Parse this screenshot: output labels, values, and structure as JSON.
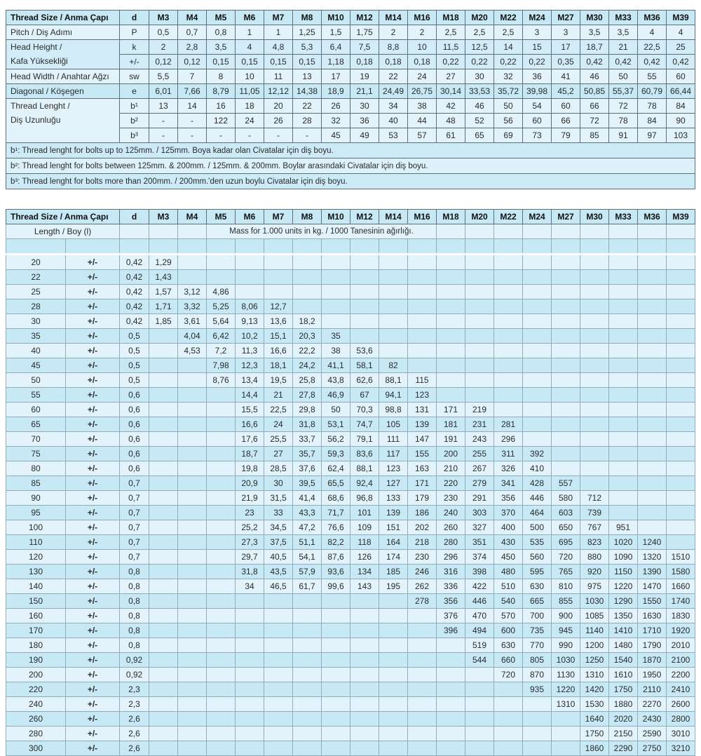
{
  "table1": {
    "corner_label": "Thread Size / Anma Çapı",
    "d_label": "d",
    "columns": [
      "M3",
      "M4",
      "M5",
      "M6",
      "M7",
      "M8",
      "M10",
      "M12",
      "M14",
      "M16",
      "M18",
      "M20",
      "M22",
      "M24",
      "M27",
      "M30",
      "M33",
      "M36",
      "M39"
    ],
    "rows": [
      {
        "label_lines": [
          "Pitch / Diş Adımı"
        ],
        "shade": "light",
        "subrows": [
          {
            "sym": "P",
            "values": [
              "0,5",
              "0,7",
              "0,8",
              "1",
              "1",
              "1,25",
              "1,5",
              "1,75",
              "2",
              "2",
              "2,5",
              "2,5",
              "2,5",
              "3",
              "3",
              "3,5",
              "3,5",
              "4",
              "4"
            ]
          }
        ]
      },
      {
        "label_lines": [
          "Head Height /",
          "Kafa Yüksekliği"
        ],
        "shade": "mid",
        "subrows": [
          {
            "sym": "k",
            "values": [
              "2",
              "2,8",
              "3,5",
              "4",
              "4,8",
              "5,3",
              "6,4",
              "7,5",
              "8,8",
              "10",
              "11,5",
              "12,5",
              "14",
              "15",
              "17",
              "18,7",
              "21",
              "22,5",
              "25"
            ]
          },
          {
            "sym": "+/-",
            "values": [
              "0,12",
              "0,12",
              "0,15",
              "0,15",
              "0,15",
              "0,15",
              "1,18",
              "0,18",
              "0,18",
              "0,18",
              "0,22",
              "0,22",
              "0,22",
              "0,22",
              "0,35",
              "0,42",
              "0,42",
              "0,42",
              "0,42"
            ]
          }
        ]
      },
      {
        "label_lines": [
          "Head Width / Anahtar Ağzı"
        ],
        "shade": "light",
        "subrows": [
          {
            "sym": "sw",
            "values": [
              "5,5",
              "7",
              "8",
              "10",
              "11",
              "13",
              "17",
              "19",
              "22",
              "24",
              "27",
              "30",
              "32",
              "36",
              "41",
              "46",
              "50",
              "55",
              "60"
            ]
          }
        ]
      },
      {
        "label_lines": [
          "Diagonal / Köşegen"
        ],
        "shade": "mid2",
        "subrows": [
          {
            "sym": "e",
            "values": [
              "6,01",
              "7,66",
              "8,79",
              "11,05",
              "12,12",
              "14,38",
              "18,9",
              "21,1",
              "24,49",
              "26,75",
              "30,14",
              "33,53",
              "35,72",
              "39,98",
              "45,2",
              "50,85",
              "55,37",
              "60,79",
              "66,44"
            ]
          }
        ]
      },
      {
        "label_lines": [
          "Thread Lenght /",
          "Diş Uzunluğu"
        ],
        "shade": "light",
        "subrows": [
          {
            "sym": "b¹",
            "values": [
              "13",
              "14",
              "16",
              "18",
              "20",
              "22",
              "26",
              "30",
              "34",
              "38",
              "42",
              "46",
              "50",
              "54",
              "60",
              "66",
              "72",
              "78",
              "84"
            ]
          },
          {
            "sym": "b²",
            "values": [
              "-",
              "-",
              "122",
              "24",
              "26",
              "28",
              "32",
              "36",
              "40",
              "44",
              "48",
              "52",
              "56",
              "60",
              "66",
              "72",
              "78",
              "84",
              "90"
            ]
          },
          {
            "sym": "b³",
            "values": [
              "-",
              "-",
              "-",
              "-",
              "-",
              "-",
              "45",
              "49",
              "53",
              "57",
              "61",
              "65",
              "69",
              "73",
              "79",
              "85",
              "91",
              "97",
              "103"
            ]
          }
        ]
      }
    ],
    "footnotes": [
      "b¹: Thread lenght for bolts up to 125mm. / 125mm. Boya kadar olan Civatalar için diş boyu.",
      "b²: Thread lenght for bolts between 125mm. & 200mm. / 125mm. & 200mm. Boylar arasındaki Civatalar için diş boyu.",
      "b³: Thread lenght for bolts more than 200mm. / 200mm.'den uzun boylu Civatalar için diş boyu."
    ]
  },
  "table2": {
    "corner_label": "Thread Size / Anma Çapı",
    "d_label": "d",
    "columns": [
      "M3",
      "M4",
      "M5",
      "M6",
      "M7",
      "M8",
      "M10",
      "M12",
      "M14",
      "M16",
      "M18",
      "M20",
      "M22",
      "M24",
      "M27",
      "M30",
      "M33",
      "M36",
      "M39"
    ],
    "length_header": "Length / Boy (l)",
    "mass_header": "Mass for 1.000 units in kg. / 1000 Tanesinin ağırlığı.",
    "tolerance_label": "+/-",
    "rows": [
      {
        "length": "20",
        "d": "0,42",
        "values": [
          "1,29",
          "",
          "",
          "",
          "",
          "",
          "",
          "",
          "",
          "",
          "",
          "",
          "",
          "",
          "",
          "",
          "",
          "",
          ""
        ]
      },
      {
        "length": "22",
        "d": "0,42",
        "values": [
          "1,43",
          "",
          "",
          "",
          "",
          "",
          "",
          "",
          "",
          "",
          "",
          "",
          "",
          "",
          "",
          "",
          "",
          "",
          ""
        ]
      },
      {
        "length": "25",
        "d": "0,42",
        "values": [
          "1,57",
          "3,12",
          "4,86",
          "",
          "",
          "",
          "",
          "",
          "",
          "",
          "",
          "",
          "",
          "",
          "",
          "",
          "",
          "",
          ""
        ]
      },
      {
        "length": "28",
        "d": "0,42",
        "values": [
          "1,71",
          "3,32",
          "5,25",
          "8,06",
          "12,7",
          "",
          "",
          "",
          "",
          "",
          "",
          "",
          "",
          "",
          "",
          "",
          "",
          "",
          ""
        ]
      },
      {
        "length": "30",
        "d": "0,42",
        "values": [
          "1,85",
          "3,61",
          "5,64",
          "9,13",
          "13,6",
          "18,2",
          "",
          "",
          "",
          "",
          "",
          "",
          "",
          "",
          "",
          "",
          "",
          "",
          ""
        ]
      },
      {
        "length": "35",
        "d": "0,5",
        "values": [
          "",
          "4,04",
          "6,42",
          "10,2",
          "15,1",
          "20,3",
          "35",
          "",
          "",
          "",
          "",
          "",
          "",
          "",
          "",
          "",
          "",
          "",
          ""
        ]
      },
      {
        "length": "40",
        "d": "0,5",
        "values": [
          "",
          "4,53",
          "7,2",
          "11,3",
          "16,6",
          "22,2",
          "38",
          "53,6",
          "",
          "",
          "",
          "",
          "",
          "",
          "",
          "",
          "",
          "",
          ""
        ]
      },
      {
        "length": "45",
        "d": "0,5",
        "values": [
          "",
          "",
          "7,98",
          "12,3",
          "18,1",
          "24,2",
          "41,1",
          "58,1",
          "82",
          "",
          "",
          "",
          "",
          "",
          "",
          "",
          "",
          "",
          ""
        ]
      },
      {
        "length": "50",
        "d": "0,5",
        "values": [
          "",
          "",
          "8,76",
          "13,4",
          "19,5",
          "25,8",
          "43,8",
          "62,6",
          "88,1",
          "115",
          "",
          "",
          "",
          "",
          "",
          "",
          "",
          "",
          ""
        ]
      },
      {
        "length": "55",
        "d": "0,6",
        "values": [
          "",
          "",
          "",
          "14,4",
          "21",
          "27,8",
          "46,9",
          "67",
          "94,1",
          "123",
          "",
          "",
          "",
          "",
          "",
          "",
          "",
          "",
          ""
        ]
      },
      {
        "length": "60",
        "d": "0,6",
        "values": [
          "",
          "",
          "",
          "15,5",
          "22,5",
          "29,8",
          "50",
          "70,3",
          "98,8",
          "131",
          "171",
          "219",
          "",
          "",
          "",
          "",
          "",
          "",
          ""
        ]
      },
      {
        "length": "65",
        "d": "0,6",
        "values": [
          "",
          "",
          "",
          "16,6",
          "24",
          "31,8",
          "53,1",
          "74,7",
          "105",
          "139",
          "181",
          "231",
          "281",
          "",
          "",
          "",
          "",
          "",
          ""
        ]
      },
      {
        "length": "70",
        "d": "0,6",
        "values": [
          "",
          "",
          "",
          "17,6",
          "25,5",
          "33,7",
          "56,2",
          "79,1",
          "111",
          "147",
          "191",
          "243",
          "296",
          "",
          "",
          "",
          "",
          "",
          ""
        ]
      },
      {
        "length": "75",
        "d": "0,6",
        "values": [
          "",
          "",
          "",
          "18,7",
          "27",
          "35,7",
          "59,3",
          "83,6",
          "117",
          "155",
          "200",
          "255",
          "311",
          "392",
          "",
          "",
          "",
          "",
          ""
        ]
      },
      {
        "length": "80",
        "d": "0,6",
        "values": [
          "",
          "",
          "",
          "19,8",
          "28,5",
          "37,6",
          "62,4",
          "88,1",
          "123",
          "163",
          "210",
          "267",
          "326",
          "410",
          "",
          "",
          "",
          "",
          ""
        ]
      },
      {
        "length": "85",
        "d": "0,7",
        "values": [
          "",
          "",
          "",
          "20,9",
          "30",
          "39,5",
          "65,5",
          "92,4",
          "127",
          "171",
          "220",
          "279",
          "341",
          "428",
          "557",
          "",
          "",
          "",
          ""
        ]
      },
      {
        "length": "90",
        "d": "0,7",
        "values": [
          "",
          "",
          "",
          "21,9",
          "31,5",
          "41,4",
          "68,6",
          "96,8",
          "133",
          "179",
          "230",
          "291",
          "356",
          "446",
          "580",
          "712",
          "",
          "",
          ""
        ]
      },
      {
        "length": "95",
        "d": "0,7",
        "values": [
          "",
          "",
          "",
          "23",
          "33",
          "43,3",
          "71,7",
          "101",
          "139",
          "186",
          "240",
          "303",
          "370",
          "464",
          "603",
          "739",
          "",
          "",
          ""
        ]
      },
      {
        "length": "100",
        "d": "0,7",
        "values": [
          "",
          "",
          "",
          "25,2",
          "34,5",
          "47,2",
          "76,6",
          "109",
          "151",
          "202",
          "260",
          "327",
          "400",
          "500",
          "650",
          "767",
          "951",
          "",
          ""
        ]
      },
      {
        "length": "110",
        "d": "0,7",
        "values": [
          "",
          "",
          "",
          "27,3",
          "37,5",
          "51,1",
          "82,2",
          "118",
          "164",
          "218",
          "280",
          "351",
          "430",
          "535",
          "695",
          "823",
          "1020",
          "1240",
          ""
        ]
      },
      {
        "length": "120",
        "d": "0,7",
        "values": [
          "",
          "",
          "",
          "29,7",
          "40,5",
          "54,1",
          "87,6",
          "126",
          "174",
          "230",
          "296",
          "374",
          "450",
          "560",
          "720",
          "880",
          "1090",
          "1320",
          "1510"
        ]
      },
      {
        "length": "130",
        "d": "0,8",
        "values": [
          "",
          "",
          "",
          "31,8",
          "43,5",
          "57,9",
          "93,6",
          "134",
          "185",
          "246",
          "316",
          "398",
          "480",
          "595",
          "765",
          "920",
          "1150",
          "1390",
          "1580"
        ]
      },
      {
        "length": "140",
        "d": "0,8",
        "values": [
          "",
          "",
          "",
          "34",
          "46,5",
          "61,7",
          "99,6",
          "143",
          "195",
          "262",
          "336",
          "422",
          "510",
          "630",
          "810",
          "975",
          "1220",
          "1470",
          "1660"
        ]
      },
      {
        "length": "150",
        "d": "0,8",
        "values": [
          "",
          "",
          "",
          "",
          "",
          "",
          "",
          "",
          "",
          "278",
          "356",
          "446",
          "540",
          "665",
          "855",
          "1030",
          "1290",
          "1550",
          "1740"
        ]
      },
      {
        "length": "160",
        "d": "0,8",
        "values": [
          "",
          "",
          "",
          "",
          "",
          "",
          "",
          "",
          "",
          "",
          "376",
          "470",
          "570",
          "700",
          "900",
          "1085",
          "1350",
          "1630",
          "1830"
        ]
      },
      {
        "length": "170",
        "d": "0,8",
        "values": [
          "",
          "",
          "",
          "",
          "",
          "",
          "",
          "",
          "",
          "",
          "396",
          "494",
          "600",
          "735",
          "945",
          "1140",
          "1410",
          "1710",
          "1920"
        ]
      },
      {
        "length": "180",
        "d": "0,8",
        "values": [
          "",
          "",
          "",
          "",
          "",
          "",
          "",
          "",
          "",
          "",
          "",
          "519",
          "630",
          "770",
          "990",
          "1200",
          "1480",
          "1790",
          "2010"
        ]
      },
      {
        "length": "190",
        "d": "0,92",
        "values": [
          "",
          "",
          "",
          "",
          "",
          "",
          "",
          "",
          "",
          "",
          "",
          "544",
          "660",
          "805",
          "1030",
          "1250",
          "1540",
          "1870",
          "2100"
        ]
      },
      {
        "length": "200",
        "d": "0,92",
        "values": [
          "",
          "",
          "",
          "",
          "",
          "",
          "",
          "",
          "",
          "",
          "",
          "",
          "720",
          "870",
          "1130",
          "1310",
          "1610",
          "1950",
          "2200"
        ]
      },
      {
        "length": "220",
        "d": "2,3",
        "values": [
          "",
          "",
          "",
          "",
          "",
          "",
          "",
          "",
          "",
          "",
          "",
          "",
          "",
          "935",
          "1220",
          "1420",
          "1750",
          "2110",
          "2410"
        ]
      },
      {
        "length": "240",
        "d": "2,3",
        "values": [
          "",
          "",
          "",
          "",
          "",
          "",
          "",
          "",
          "",
          "",
          "",
          "",
          "",
          "",
          "1310",
          "1530",
          "1880",
          "2270",
          "2600"
        ]
      },
      {
        "length": "260",
        "d": "2,6",
        "values": [
          "",
          "",
          "",
          "",
          "",
          "",
          "",
          "",
          "",
          "",
          "",
          "",
          "",
          "",
          "",
          "1640",
          "2020",
          "2430",
          "2800"
        ]
      },
      {
        "length": "280",
        "d": "2,6",
        "values": [
          "",
          "",
          "",
          "",
          "",
          "",
          "",
          "",
          "",
          "",
          "",
          "",
          "",
          "",
          "",
          "1750",
          "2150",
          "2590",
          "3010"
        ]
      },
      {
        "length": "300",
        "d": "2,6",
        "values": [
          "",
          "",
          "",
          "",
          "",
          "",
          "",
          "",
          "",
          "",
          "",
          "",
          "",
          "",
          "",
          "1860",
          "2290",
          "2750",
          "3210"
        ]
      }
    ]
  }
}
